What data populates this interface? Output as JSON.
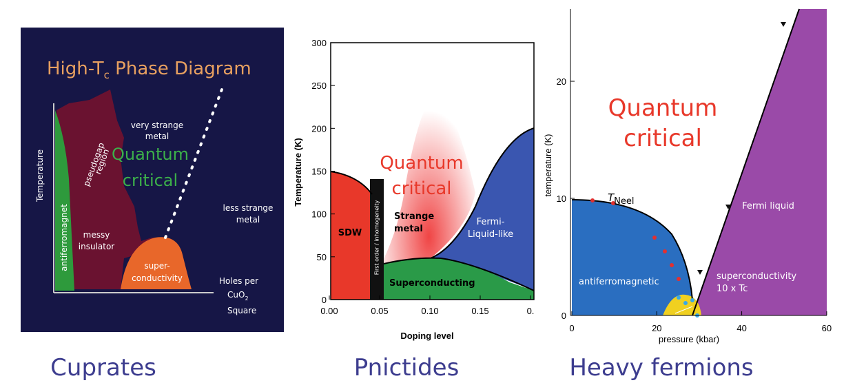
{
  "cuprates": {
    "title": {
      "main": "High-T",
      "sub": "c",
      "rest": " Phase Diagram"
    },
    "y_axis_label": "Temperature",
    "x_axis_label": {
      "line1": "Holes per",
      "line2a": "CuO",
      "line2sub": "2",
      "line3": "Square"
    },
    "regions": {
      "antiferromagnet": "antiferromagnet",
      "pseudogap1": "pseudogap",
      "pseudogap2": "region",
      "very_strange1": "very strange",
      "very_strange2": "metal",
      "qc1": "Quantum",
      "qc2": "critical",
      "less_strange1": "less strange",
      "less_strange2": "metal",
      "messy1": "messy",
      "messy2": "insulator",
      "sc1": "super-",
      "sc2": "conductivity"
    },
    "caption": "Cuprates"
  },
  "pnictides": {
    "y_axis_label": "Temperature (K)",
    "x_axis_label": "Doping level",
    "yticks": [
      "0",
      "50",
      "100",
      "150",
      "200",
      "250",
      "300"
    ],
    "xticks": [
      "0.00",
      "0.05",
      "0.10",
      "0.15",
      "0."
    ],
    "regions": {
      "sdw": "SDW",
      "first_order": "First order / inhomogeneity",
      "qc1": "Quantum",
      "qc2": "critical",
      "strange1": "Strange",
      "strange2": "metal",
      "fermi1": "Fermi-",
      "fermi2": "Liquid-like",
      "sc": "Superconducting"
    },
    "caption": "Pnictides"
  },
  "heavy_fermions": {
    "y_axis_label": "temperature (K)",
    "x_axis_label": "pressure (kbar)",
    "yticks": [
      "0",
      "10",
      "20"
    ],
    "xticks": [
      "0",
      "20",
      "40",
      "60"
    ],
    "regions": {
      "qc1": "Quantum",
      "qc2": "critical",
      "tneel": "T",
      "tneel_sub": "Neel",
      "fermi": "Fermi liquid",
      "afm": "antiferromagnetic",
      "sc1": "superconductivity",
      "sc2": "10 x Tc"
    },
    "caption": "Heavy fermions"
  }
}
